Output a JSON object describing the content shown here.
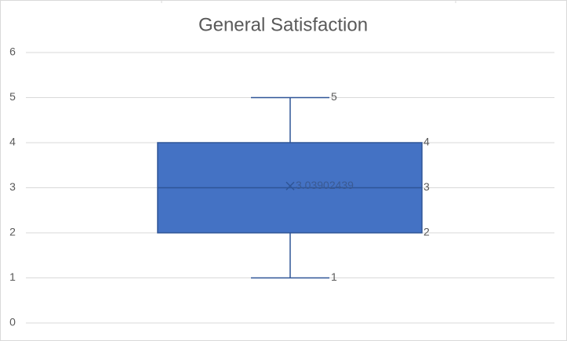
{
  "chart_data": {
    "type": "box",
    "title": "General Satisfaction",
    "ylim": [
      0,
      6
    ],
    "yticks": [
      0,
      1,
      2,
      3,
      4,
      5,
      6
    ],
    "grid": true,
    "color": "#4472c4",
    "min": 1,
    "q1": 2,
    "median": 3,
    "q3": 4,
    "max": 5,
    "mean": 3.03902439
  }
}
